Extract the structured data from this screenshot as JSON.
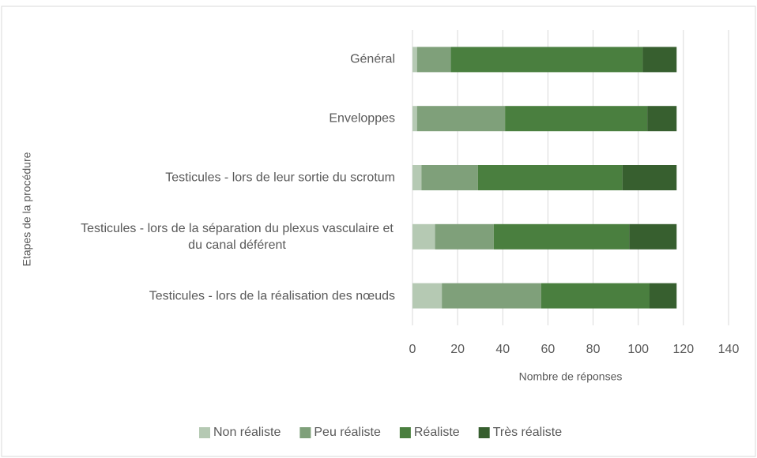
{
  "chart_data": {
    "type": "stacked-barh",
    "y_label": "Etapes de la procédure",
    "x_label": "Nombre de réponses",
    "categories": [
      "Général",
      "Enveloppes",
      "Testicules - lors de leur sortie du scrotum",
      "Testicules - lors de la séparation du plexus vasculaire et du canal déférent",
      "Testicules - lors de la réalisation des nœuds"
    ],
    "series": [
      {
        "name": "Non réaliste",
        "color": "#b5c9b3",
        "values": [
          2,
          2,
          4,
          10,
          13
        ]
      },
      {
        "name": "Peu réaliste",
        "color": "#7fa07a",
        "values": [
          15,
          39,
          25,
          26,
          44
        ]
      },
      {
        "name": "Réaliste",
        "color": "#4a7f3f",
        "values": [
          85,
          63,
          64,
          60,
          48
        ]
      },
      {
        "name": "Très réaliste",
        "color": "#375f2f",
        "values": [
          15,
          13,
          24,
          21,
          12
        ]
      }
    ],
    "xlim": [
      0,
      140
    ],
    "xticks": [
      0,
      20,
      40,
      60,
      80,
      100,
      120,
      140
    ],
    "grid": true,
    "legend": "bottom"
  }
}
